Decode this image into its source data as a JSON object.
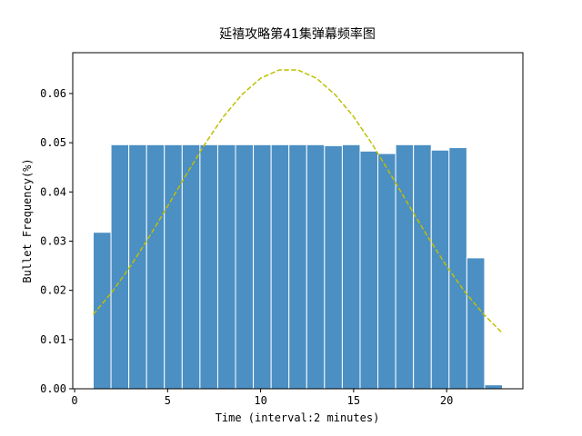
{
  "chart_data": {
    "type": "histogram",
    "title": "延禧攻略第41集弹幕频率图",
    "xlabel": "Time (interval:2 minutes)",
    "ylabel": "Bullet Frequency(%)",
    "bins": [
      1,
      1.9565,
      2.913,
      3.8696,
      4.8261,
      5.7826,
      6.7391,
      7.6957,
      8.6522,
      9.6087,
      10.5652,
      11.5217,
      12.4783,
      13.4348,
      14.3913,
      15.3478,
      16.3043,
      17.2609,
      18.2174,
      19.1739,
      20.1304,
      21.087,
      22.0435,
      23
    ],
    "values": [
      0.0318,
      0.0496,
      0.0496,
      0.0496,
      0.0496,
      0.0496,
      0.0496,
      0.0496,
      0.0496,
      0.0496,
      0.0496,
      0.0496,
      0.0496,
      0.0494,
      0.0496,
      0.0483,
      0.0478,
      0.0496,
      0.0496,
      0.0485,
      0.049,
      0.0266,
      0.0008
    ],
    "color": "#4b8fc3",
    "edgecolor": "#ffffff",
    "curve": {
      "type": "line",
      "color": "#bfbf00",
      "dashed": true,
      "x": [
        1,
        2,
        3,
        4,
        5,
        6,
        7,
        8,
        9,
        10,
        11,
        12,
        13,
        14,
        15,
        16,
        17,
        18,
        19,
        20,
        21,
        22,
        23
      ],
      "values": [
        0.0151,
        0.0196,
        0.0249,
        0.0308,
        0.0371,
        0.0435,
        0.0497,
        0.0553,
        0.0598,
        0.0631,
        0.0648,
        0.0648,
        0.0631,
        0.0598,
        0.0553,
        0.0497,
        0.0435,
        0.0371,
        0.0308,
        0.0249,
        0.0196,
        0.0151,
        0.0113
      ]
    },
    "xlim": [
      -0.1,
      24.1
    ],
    "xticks": [
      0,
      5,
      10,
      15,
      20
    ],
    "ylim": [
      0,
      0.0683
    ],
    "yticks": [
      {
        "value": 0,
        "label": "0.00"
      },
      0.01,
      0.02,
      0.03,
      0.04,
      0.05,
      0.06
    ],
    "grid": false
  }
}
